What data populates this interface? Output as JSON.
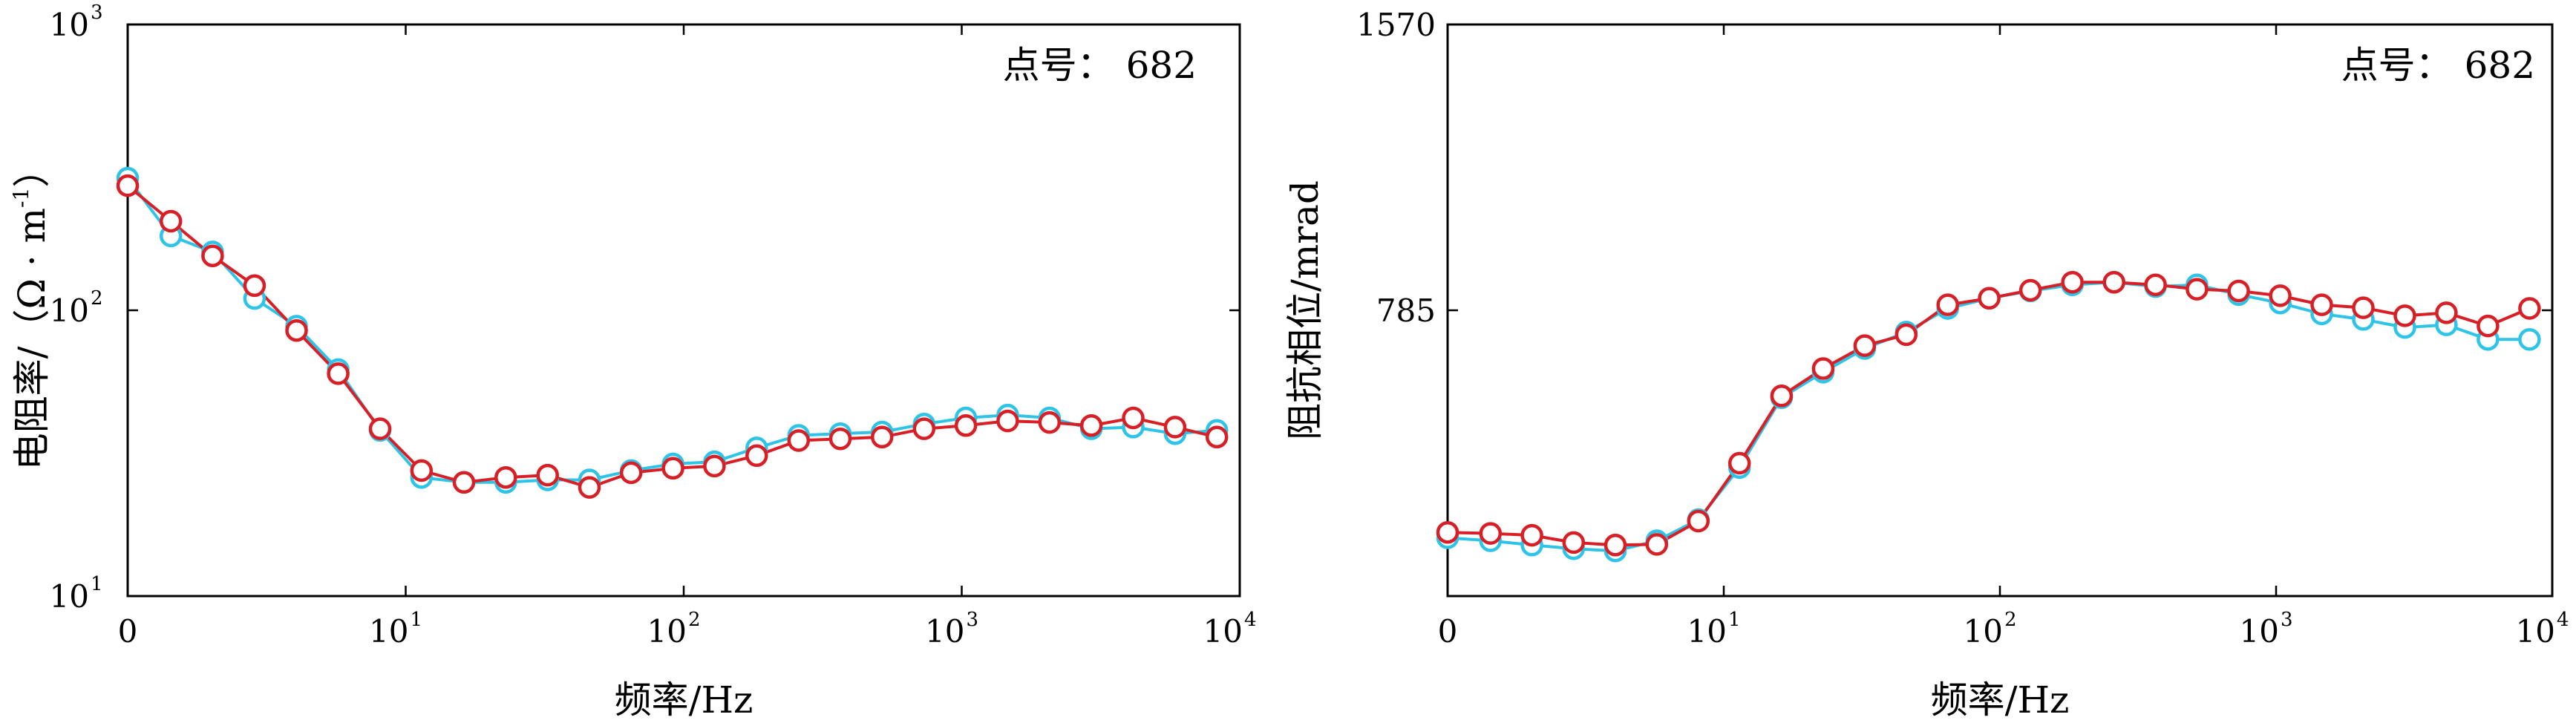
{
  "colors": {
    "series1": "#2ec4e8",
    "series2": "#d81f26"
  },
  "chart_data": [
    {
      "type": "line",
      "title": "",
      "annotation": "点号： 682",
      "xlabel": "频率/Hz",
      "ylabel": "电阻率/（Ω · m",
      "ylabel_sup": "-1",
      "ylabel_close": "）",
      "x_scale": "log",
      "y_scale": "log",
      "ylim": [
        10,
        1000
      ],
      "y_ticks": [
        {
          "base": "10",
          "exp": "1",
          "value": 10
        },
        {
          "base": "10",
          "exp": "2",
          "value": 100
        },
        {
          "base": "10",
          "exp": "3",
          "value": 1000
        }
      ],
      "x_ticks": [
        {
          "base": "0",
          "exp": "",
          "value": 1
        },
        {
          "base": "10",
          "exp": "1",
          "value": 10
        },
        {
          "base": "10",
          "exp": "2",
          "value": 100
        },
        {
          "base": "10",
          "exp": "3",
          "value": 1000
        },
        {
          "base": "10",
          "exp": "4",
          "value": 10000
        }
      ],
      "xlim": [
        1,
        10000
      ],
      "grid": false,
      "x": [
        1,
        1.43,
        2.02,
        2.86,
        4.05,
        5.72,
        8.09,
        11.4,
        16.2,
        22.9,
        32.4,
        45.8,
        64.7,
        91.5,
        129,
        183,
        259,
        366,
        517,
        732,
        1035,
        1463,
        2069,
        2926,
        4138,
        5852,
        8277
      ],
      "series": [
        {
          "values": [
            290,
            182,
            160,
            110,
            88,
            62,
            38,
            26,
            25,
            25,
            25.5,
            25.5,
            27.5,
            29,
            29.5,
            33,
            36.5,
            37,
            37.5,
            40,
            42,
            43,
            42,
            38.5,
            39,
            37,
            38
          ]
        },
        {
          "values": [
            273,
            205,
            155,
            122,
            85,
            60,
            38.5,
            27.5,
            25,
            26,
            26.5,
            24,
            27,
            28,
            28.5,
            31,
            35,
            35.5,
            36,
            38.5,
            39.5,
            41,
            40.5,
            39.5,
            42,
            39,
            36
          ]
        }
      ]
    },
    {
      "type": "line",
      "title": "",
      "annotation": "点号： 682",
      "xlabel": "频率/Hz",
      "ylabel": "阻抗相位/mrad",
      "x_scale": "log",
      "y_scale": "linear",
      "ylim": [
        0,
        1570
      ],
      "y_ticks": [
        {
          "label": "785",
          "value": 785
        },
        {
          "label": "1570",
          "value": 1570
        }
      ],
      "x_ticks": [
        {
          "base": "0",
          "exp": "",
          "value": 1
        },
        {
          "base": "10",
          "exp": "1",
          "value": 10
        },
        {
          "base": "10",
          "exp": "2",
          "value": 100
        },
        {
          "base": "10",
          "exp": "3",
          "value": 1000
        },
        {
          "base": "10",
          "exp": "4",
          "value": 10000
        }
      ],
      "xlim": [
        1,
        10000
      ],
      "grid": false,
      "x": [
        1,
        1.43,
        2.02,
        2.86,
        4.05,
        5.72,
        8.09,
        11.4,
        16.2,
        22.9,
        32.4,
        45.8,
        64.7,
        91.5,
        129,
        183,
        259,
        366,
        517,
        732,
        1035,
        1463,
        2069,
        2926,
        4138,
        5852,
        8277
      ],
      "series": [
        {
          "values": [
            160,
            152,
            140,
            130,
            124,
            152,
            210,
            353,
            545,
            615,
            680,
            725,
            790,
            818,
            838,
            855,
            862,
            850,
            855,
            828,
            805,
            775,
            760,
            738,
            745,
            705,
            705
          ]
        },
        {
          "values": [
            175,
            172,
            167,
            147,
            140,
            142,
            206,
            365,
            550,
            625,
            688,
            718,
            800,
            818,
            840,
            862,
            862,
            855,
            843,
            838,
            825,
            800,
            792,
            770,
            778,
            742,
            790
          ]
        }
      ]
    }
  ]
}
